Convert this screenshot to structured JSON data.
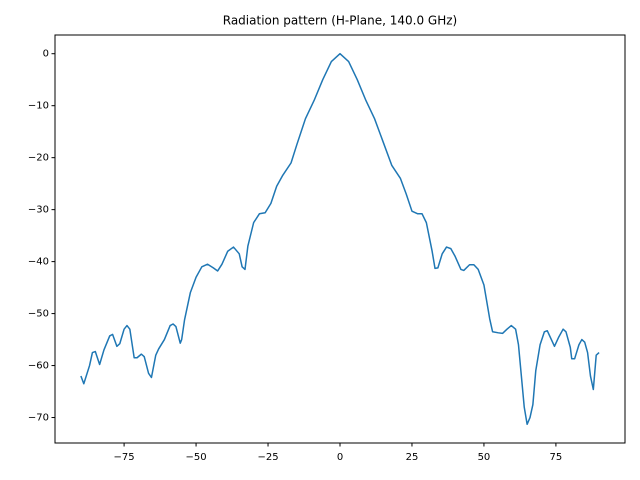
{
  "chart_data": {
    "type": "line",
    "title": "Radiation pattern (H-Plane, 140.0 GHz)",
    "x": [
      -90,
      -89,
      -87,
      -86,
      -85,
      -83.5,
      -82,
      -80,
      -79,
      -77.5,
      -76.5,
      -75,
      -74,
      -73,
      -71.5,
      -70.5,
      -69,
      -68,
      -66.5,
      -65.5,
      -64,
      -63,
      -61,
      -59,
      -58,
      -57,
      -55.5,
      -55,
      -54,
      -52,
      -50,
      -48,
      -46,
      -44,
      -42.5,
      -41,
      -39,
      -37,
      -35,
      -34,
      -33,
      -32,
      -30,
      -28,
      -26,
      -24,
      -22,
      -20,
      -17,
      -15,
      -12,
      -9,
      -6,
      -3,
      0,
      3,
      6,
      9,
      12,
      15,
      18,
      21,
      23,
      25,
      27,
      28.5,
      30,
      32,
      33,
      34,
      35.5,
      37,
      38.5,
      40,
      42,
      43,
      45,
      46.5,
      48,
      50,
      52,
      53,
      55,
      56.5,
      58,
      59.5,
      61,
      62,
      63,
      64,
      65,
      66,
      67,
      68,
      69.5,
      71,
      72,
      73,
      74.5,
      76,
      77.5,
      78.5,
      80,
      80.5,
      81.5,
      83,
      84,
      85,
      86,
      87,
      88,
      89,
      90
    ],
    "values": [
      -62,
      -63.5,
      -60,
      -57.5,
      -57.3,
      -59.8,
      -57,
      -54.3,
      -54,
      -56.3,
      -55.8,
      -53,
      -52.3,
      -53,
      -58.5,
      -58.5,
      -57.8,
      -58.3,
      -61.5,
      -62.3,
      -58,
      -56.8,
      -55,
      -52.3,
      -52,
      -52.5,
      -55.7,
      -55,
      -51.2,
      -46,
      -43,
      -41,
      -40.5,
      -41.2,
      -41.8,
      -40.5,
      -38,
      -37.2,
      -38.5,
      -41,
      -41.5,
      -37,
      -32.5,
      -30.8,
      -30.6,
      -28.8,
      -25.5,
      -23.5,
      -21,
      -17.5,
      -12.5,
      -9,
      -5,
      -1.5,
      0,
      -1.5,
      -5,
      -9,
      -12.5,
      -17,
      -21.5,
      -24,
      -27,
      -30.3,
      -30.8,
      -30.8,
      -32.5,
      -38,
      -41.3,
      -41.2,
      -38.5,
      -37.2,
      -37.5,
      -39,
      -41.5,
      -41.7,
      -40.6,
      -40.6,
      -41.5,
      -44.5,
      -51,
      -53.5,
      -53.7,
      -53.8,
      -53,
      -52.3,
      -53,
      -56,
      -62,
      -68,
      -71.3,
      -70,
      -67.5,
      -61,
      -56,
      -53.5,
      -53.3,
      -54.5,
      -56.3,
      -54.5,
      -53,
      -53.5,
      -56.5,
      -58.7,
      -58.7,
      -56,
      -55,
      -55.5,
      -57.5,
      -62,
      -64.6,
      -58,
      -57.5
    ],
    "color": "#1f77b4",
    "xlim": [
      -99,
      99
    ],
    "ylim": [
      -74.9,
      3.6
    ],
    "xticks": [
      {
        "value": -75,
        "label": "−75"
      },
      {
        "value": -50,
        "label": "−50"
      },
      {
        "value": -25,
        "label": "−25"
      },
      0,
      25,
      50,
      75
    ],
    "yticks": [
      0,
      {
        "value": -10,
        "label": "−10"
      },
      {
        "value": -20,
        "label": "−20"
      },
      {
        "value": -30,
        "label": "−30"
      },
      {
        "value": -40,
        "label": "−40"
      },
      {
        "value": -50,
        "label": "−50"
      },
      {
        "value": -60,
        "label": "−60"
      },
      {
        "value": -70,
        "label": "−70"
      }
    ]
  }
}
